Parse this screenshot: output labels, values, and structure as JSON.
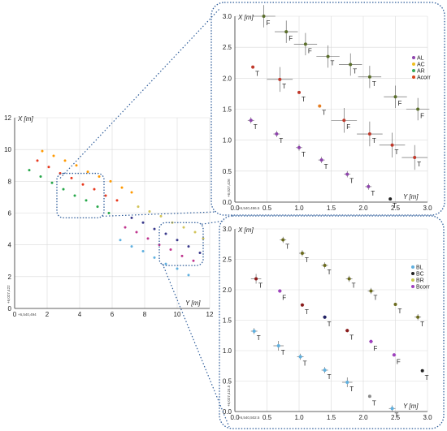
{
  "chart_data": [
    {
      "id": "overview",
      "type": "scatter",
      "xlabel": "Y [m]",
      "ylabel": "X [m]",
      "xlim": [
        0,
        12
      ],
      "ylim": [
        0,
        12
      ],
      "xticks": [
        "0",
        "2",
        "4",
        "6",
        "8",
        "10",
        "12"
      ],
      "yticks": [
        "0",
        "2",
        "4",
        "6",
        "8",
        "10",
        "12"
      ],
      "x_origin_label": "+6,540,494",
      "y_origin_label": "+6,027,422",
      "grid": true,
      "series": [
        {
          "color": "#ff9900",
          "points": [
            [
              1.7,
              9.9
            ],
            [
              2.4,
              9.6
            ],
            [
              3.1,
              9.3
            ],
            [
              3.8,
              9.0
            ],
            [
              4.5,
              8.6
            ],
            [
              5.2,
              8.3
            ],
            [
              5.9,
              8.0
            ],
            [
              6.6,
              7.6
            ],
            [
              7.2,
              7.3
            ]
          ]
        },
        {
          "color": "#e8391e",
          "points": [
            [
              1.4,
              9.3
            ],
            [
              2.1,
              8.9
            ],
            [
              2.8,
              8.5
            ],
            [
              3.5,
              8.2
            ],
            [
              4.2,
              7.8
            ],
            [
              4.9,
              7.5
            ],
            [
              5.6,
              7.1
            ],
            [
              6.3,
              6.8
            ]
          ]
        },
        {
          "color": "#27a84a",
          "points": [
            [
              0.9,
              8.7
            ],
            [
              1.6,
              8.3
            ],
            [
              2.3,
              7.9
            ],
            [
              3.0,
              7.5
            ],
            [
              3.7,
              7.1
            ],
            [
              4.4,
              6.8
            ],
            [
              5.1,
              6.4
            ],
            [
              5.8,
              6.0
            ]
          ]
        },
        {
          "color": "#d2c45a",
          "points": [
            [
              7.6,
              6.4
            ],
            [
              8.3,
              6.1
            ],
            [
              9.0,
              5.8
            ],
            [
              9.7,
              5.4
            ],
            [
              10.4,
              5.1
            ],
            [
              11.1,
              4.8
            ],
            [
              11.6,
              4.4
            ]
          ]
        },
        {
          "color": "#3a3a8c",
          "points": [
            [
              7.2,
              5.7
            ],
            [
              7.9,
              5.4
            ],
            [
              8.6,
              5.0
            ],
            [
              9.3,
              4.7
            ],
            [
              10.0,
              4.3
            ],
            [
              10.7,
              3.9
            ],
            [
              11.4,
              3.5
            ]
          ]
        },
        {
          "color": "#c0378f",
          "points": [
            [
              6.8,
              5.1
            ],
            [
              7.5,
              4.8
            ],
            [
              8.2,
              4.4
            ],
            [
              8.9,
              4.0
            ],
            [
              9.6,
              3.7
            ],
            [
              10.3,
              3.3
            ],
            [
              11.0,
              3.0
            ]
          ]
        },
        {
          "color": "#5fb0e0",
          "points": [
            [
              6.5,
              4.3
            ],
            [
              7.2,
              3.9
            ],
            [
              7.9,
              3.6
            ],
            [
              8.6,
              3.2
            ],
            [
              9.3,
              2.8
            ],
            [
              10.0,
              2.5
            ],
            [
              10.7,
              2.1
            ]
          ]
        }
      ],
      "zoom_boxes": [
        {
          "y_range": [
            2.6,
            5.5
          ],
          "x_range": [
            5.7,
            8.5
          ]
        },
        {
          "y_range": [
            8.9,
            11.6
          ],
          "x_range": [
            2.7,
            5.4
          ]
        }
      ]
    },
    {
      "id": "zoom-top",
      "type": "scatter",
      "xlabel": "Y [m]",
      "ylabel": "X [m]",
      "xlim": [
        0,
        3.0
      ],
      "ylim": [
        0,
        3.0
      ],
      "xticks": [
        "0.0",
        "0.5",
        "1.0",
        "1.5",
        "2.0",
        "2.5",
        "3.0"
      ],
      "yticks": [
        "0.0",
        "0.5",
        "1.0",
        "1.5",
        "2.0",
        "2.5",
        "3.0"
      ],
      "x_origin_label": "+6,540,496.5",
      "y_origin_label": "+6,027,426",
      "grid": true,
      "legend_position": "right",
      "series": [
        {
          "name": "AL",
          "color": "#8e44ad"
        },
        {
          "name": "AC",
          "color": "#f0c020"
        },
        {
          "name": "AR",
          "color": "#3aaa5a"
        },
        {
          "name": "Acorr",
          "color": "#d8451a"
        }
      ],
      "points": [
        {
          "y": 0.45,
          "x": 3.0,
          "label": "F",
          "color": "#5a6e2a",
          "err": 0.18
        },
        {
          "y": 0.8,
          "x": 2.75,
          "label": "F",
          "color": "#5a6e2a",
          "err": 0.18
        },
        {
          "y": 1.1,
          "x": 2.55,
          "label": "F",
          "color": "#5a6e2a",
          "err": 0.18
        },
        {
          "y": 1.45,
          "x": 2.35,
          "label": "T",
          "color": "#5a6e2a",
          "err": 0.18
        },
        {
          "y": 1.8,
          "x": 2.22,
          "label": "T",
          "color": "#5a6e2a",
          "err": 0.18
        },
        {
          "y": 2.1,
          "x": 2.02,
          "label": "T",
          "color": "#5a6e2a",
          "err": 0.18
        },
        {
          "y": 2.5,
          "x": 1.7,
          "label": "F",
          "color": "#5a6e2a",
          "err": 0.18
        },
        {
          "y": 2.85,
          "x": 1.5,
          "label": "F",
          "color": "#5a6e2a",
          "err": 0.18
        },
        {
          "y": 0.28,
          "x": 2.18,
          "label": "T",
          "color": "#c0392b",
          "err": 0
        },
        {
          "y": 0.7,
          "x": 1.98,
          "label": "T",
          "color": "#c0392b",
          "err": 0.2
        },
        {
          "y": 1.0,
          "x": 1.77,
          "label": "T",
          "color": "#c0392b",
          "err": 0
        },
        {
          "y": 1.32,
          "x": 1.55,
          "label": "T",
          "color": "#e67e22",
          "err": 0
        },
        {
          "y": 1.7,
          "x": 1.32,
          "label": "F",
          "color": "#c0392b",
          "err": 0.2
        },
        {
          "y": 2.1,
          "x": 1.1,
          "label": "T",
          "color": "#c0392b",
          "err": 0.2
        },
        {
          "y": 2.45,
          "x": 0.92,
          "label": "T",
          "color": "#c0392b",
          "err": 0.2
        },
        {
          "y": 2.8,
          "x": 0.72,
          "label": "T",
          "color": "#c0392b",
          "err": 0.2
        },
        {
          "y": 0.25,
          "x": 1.32,
          "label": "T",
          "color": "#8e44ad",
          "err": 0.05
        },
        {
          "y": 0.65,
          "x": 1.1,
          "label": "T",
          "color": "#8e44ad",
          "err": 0.05
        },
        {
          "y": 1.0,
          "x": 0.88,
          "label": "T",
          "color": "#8e44ad",
          "err": 0.05
        },
        {
          "y": 1.35,
          "x": 0.68,
          "label": "T",
          "color": "#8e44ad",
          "err": 0.05
        },
        {
          "y": 1.75,
          "x": 0.45,
          "label": "T",
          "color": "#8e44ad",
          "err": 0.05
        },
        {
          "y": 2.08,
          "x": 0.25,
          "label": "T",
          "color": "#8e44ad",
          "err": 0.05
        },
        {
          "y": 2.42,
          "x": 0.05,
          "label": "T",
          "color": "#222222",
          "err": 0
        }
      ]
    },
    {
      "id": "zoom-bottom",
      "type": "scatter",
      "xlabel": "Y [m]",
      "ylabel": "X [m]",
      "xlim": [
        0,
        3.0
      ],
      "ylim": [
        0,
        3.0
      ],
      "xticks": [
        "0.0",
        "0.5",
        "1.0",
        "1.5",
        "2.0",
        "2.5",
        "3.0"
      ],
      "yticks": [
        "0.0",
        "0.5",
        "1.0",
        "1.5",
        "2.0",
        "2.5",
        "3.0"
      ],
      "x_origin_label": "+6,540,502.5",
      "y_origin_label": "+6,027,424.5",
      "grid": true,
      "legend_position": "right",
      "series": [
        {
          "name": "BL",
          "color": "#5fb0e0"
        },
        {
          "name": "BC",
          "color": "#222222"
        },
        {
          "name": "BR",
          "color": "#c9c94a"
        },
        {
          "name": "Bcorr",
          "color": "#a040c0"
        }
      ],
      "points": [
        {
          "y": 0.75,
          "x": 2.82,
          "label": "T",
          "color": "#6b6b1e",
          "err": 0.05
        },
        {
          "y": 1.05,
          "x": 2.6,
          "label": "T",
          "color": "#6b6b1e",
          "err": 0.05
        },
        {
          "y": 1.4,
          "x": 2.4,
          "label": "T",
          "color": "#6b6b1e",
          "err": 0.05
        },
        {
          "y": 1.78,
          "x": 2.18,
          "label": "T",
          "color": "#6b6b1e",
          "err": 0.05
        },
        {
          "y": 2.12,
          "x": 1.98,
          "label": "T",
          "color": "#6b6b1e",
          "err": 0.05
        },
        {
          "y": 2.5,
          "x": 1.76,
          "label": "T",
          "color": "#6b6b1e",
          "err": 0
        },
        {
          "y": 2.85,
          "x": 1.55,
          "label": "T",
          "color": "#6b6b1e",
          "err": 0.05
        },
        {
          "y": 0.33,
          "x": 2.18,
          "label": "T",
          "color": "#8b1a1a",
          "err": 0.08
        },
        {
          "y": 0.7,
          "x": 1.98,
          "label": "F",
          "color": "#a040c0",
          "err": 0.03
        },
        {
          "y": 1.05,
          "x": 1.75,
          "label": "T",
          "color": "#8b1a1a",
          "err": 0.03
        },
        {
          "y": 1.4,
          "x": 1.55,
          "label": "T",
          "color": "#222266",
          "err": 0.03
        },
        {
          "y": 1.75,
          "x": 1.33,
          "label": "T",
          "color": "#8b1a1a",
          "err": 0.03
        },
        {
          "y": 2.12,
          "x": 1.15,
          "label": "F",
          "color": "#a040c0",
          "err": 0.03
        },
        {
          "y": 2.48,
          "x": 0.93,
          "label": "F",
          "color": "#a040c0",
          "err": 0.03
        },
        {
          "y": 2.92,
          "x": 0.67,
          "label": "T",
          "color": "#222222",
          "err": 0
        },
        {
          "y": 0.3,
          "x": 1.32,
          "label": "T",
          "color": "#5fb0e0",
          "err": 0.05
        },
        {
          "y": 0.68,
          "x": 1.08,
          "label": "T",
          "color": "#5fb0e0",
          "err": 0.08
        },
        {
          "y": 1.02,
          "x": 0.9,
          "label": "T",
          "color": "#5fb0e0",
          "err": 0.05
        },
        {
          "y": 1.4,
          "x": 0.68,
          "label": "T",
          "color": "#5fb0e0",
          "err": 0.05
        },
        {
          "y": 1.75,
          "x": 0.48,
          "label": "T",
          "color": "#5fb0e0",
          "err": 0.08
        },
        {
          "y": 2.1,
          "x": 0.25,
          "label": "T",
          "color": "#8a8a8a",
          "err": 0
        },
        {
          "y": 2.45,
          "x": 0.05,
          "label": "T",
          "color": "#5fb0e0",
          "err": 0.05
        }
      ]
    }
  ]
}
